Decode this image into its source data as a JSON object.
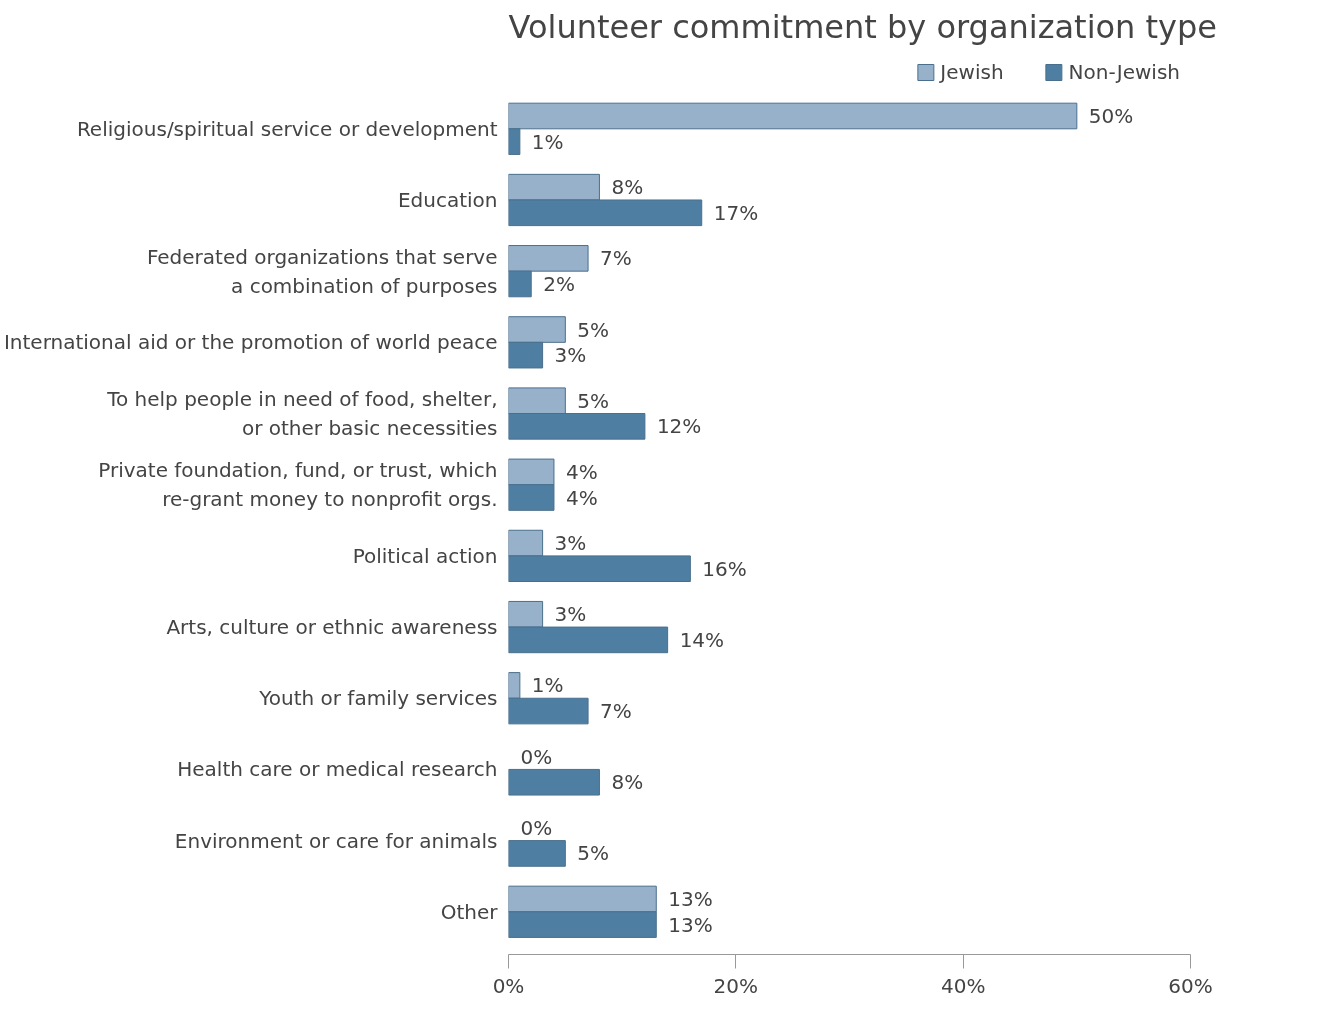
{
  "chart_data": {
    "type": "bar",
    "orientation": "horizontal",
    "title": "Volunteer commitment by organization type",
    "categories": [
      "Religious/spiritual service or development",
      "Education",
      "Federated organizations that serve\na combination of purposes",
      "International aid or the promotion of world peace",
      "To help people in need of food, shelter,\nor other basic necessities",
      "Private foundation, fund, or trust, which\nre-grant money to nonprofit orgs.",
      "Political action",
      "Arts, culture or ethnic awareness",
      "Youth or family services",
      "Health care or medical research",
      "Environment or care for animals",
      "Other"
    ],
    "series": [
      {
        "name": "Jewish",
        "color": "#97b1cb",
        "values": [
          50,
          8,
          7,
          5,
          5,
          4,
          3,
          3,
          1,
          0,
          0,
          13
        ],
        "value_labels": [
          "50%",
          "8%",
          "7%",
          "5%",
          "5%",
          "4%",
          "3%",
          "3%",
          "1%",
          "0%",
          "0%",
          "13%"
        ]
      },
      {
        "name": "Non-Jewish",
        "color": "#4e7fa3",
        "values": [
          1,
          17,
          2,
          3,
          12,
          4,
          16,
          14,
          7,
          8,
          5,
          13
        ],
        "value_labels": [
          "1%",
          "17%",
          "2%",
          "3%",
          "12%",
          "4%",
          "16%",
          "14%",
          "7%",
          "8%",
          "5%",
          "13%"
        ]
      }
    ],
    "xlim": [
      0,
      60
    ],
    "xticks": [
      {
        "value": 0,
        "label": "0%"
      },
      {
        "value": 20,
        "label": "20%"
      },
      {
        "value": 40,
        "label": "40%"
      },
      {
        "value": 60,
        "label": "60%"
      }
    ],
    "grid": false,
    "legend": "top right"
  }
}
